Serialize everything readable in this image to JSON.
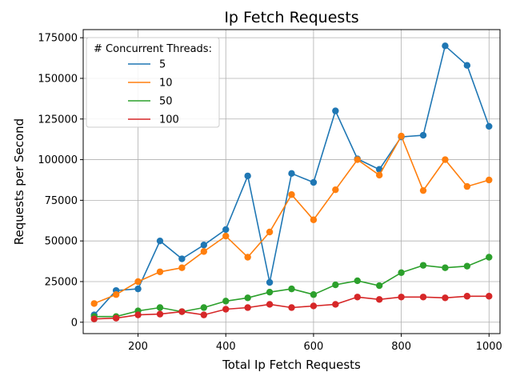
{
  "chart_data": {
    "type": "line",
    "title": "Ip Fetch Requests",
    "xlabel": "Total Ip Fetch Requests",
    "ylabel": "Requests per Second",
    "xlim": [
      75,
      1025
    ],
    "ylim": [
      -7000,
      180000
    ],
    "xticks": [
      200,
      400,
      600,
      800,
      1000
    ],
    "yticks": [
      0,
      25000,
      50000,
      75000,
      100000,
      125000,
      150000,
      175000
    ],
    "grid": true,
    "legend": {
      "title": "# Concurrent Threads:",
      "placement": "top-left"
    },
    "x": [
      100,
      150,
      200,
      250,
      300,
      350,
      400,
      450,
      500,
      550,
      600,
      650,
      700,
      750,
      800,
      850,
      900,
      950,
      1000
    ],
    "series": [
      {
        "name": "5",
        "color": "#1f77b4",
        "values": [
          4500,
          19500,
          20500,
          50000,
          39000,
          47500,
          57000,
          90000,
          24500,
          91500,
          86000,
          130000,
          100500,
          94000,
          114000,
          115000,
          170000,
          158000,
          120500
        ]
      },
      {
        "name": "10",
        "color": "#ff7f0e",
        "values": [
          11500,
          17000,
          25000,
          31000,
          33500,
          43500,
          53000,
          40000,
          55500,
          78500,
          63000,
          81500,
          100000,
          90500,
          114500,
          81000,
          100000,
          83500,
          87500
        ]
      },
      {
        "name": "50",
        "color": "#2ca02c",
        "values": [
          3500,
          3500,
          7000,
          9000,
          6500,
          9000,
          13000,
          15000,
          18500,
          20500,
          17000,
          23000,
          25500,
          22500,
          30500,
          35000,
          33500,
          34500,
          40000
        ]
      },
      {
        "name": "100",
        "color": "#d62728",
        "values": [
          2000,
          2500,
          4500,
          5000,
          6500,
          4500,
          8000,
          9000,
          11000,
          9000,
          10000,
          11000,
          15500,
          14000,
          15500,
          15500,
          15000,
          16000,
          16000
        ]
      }
    ]
  }
}
